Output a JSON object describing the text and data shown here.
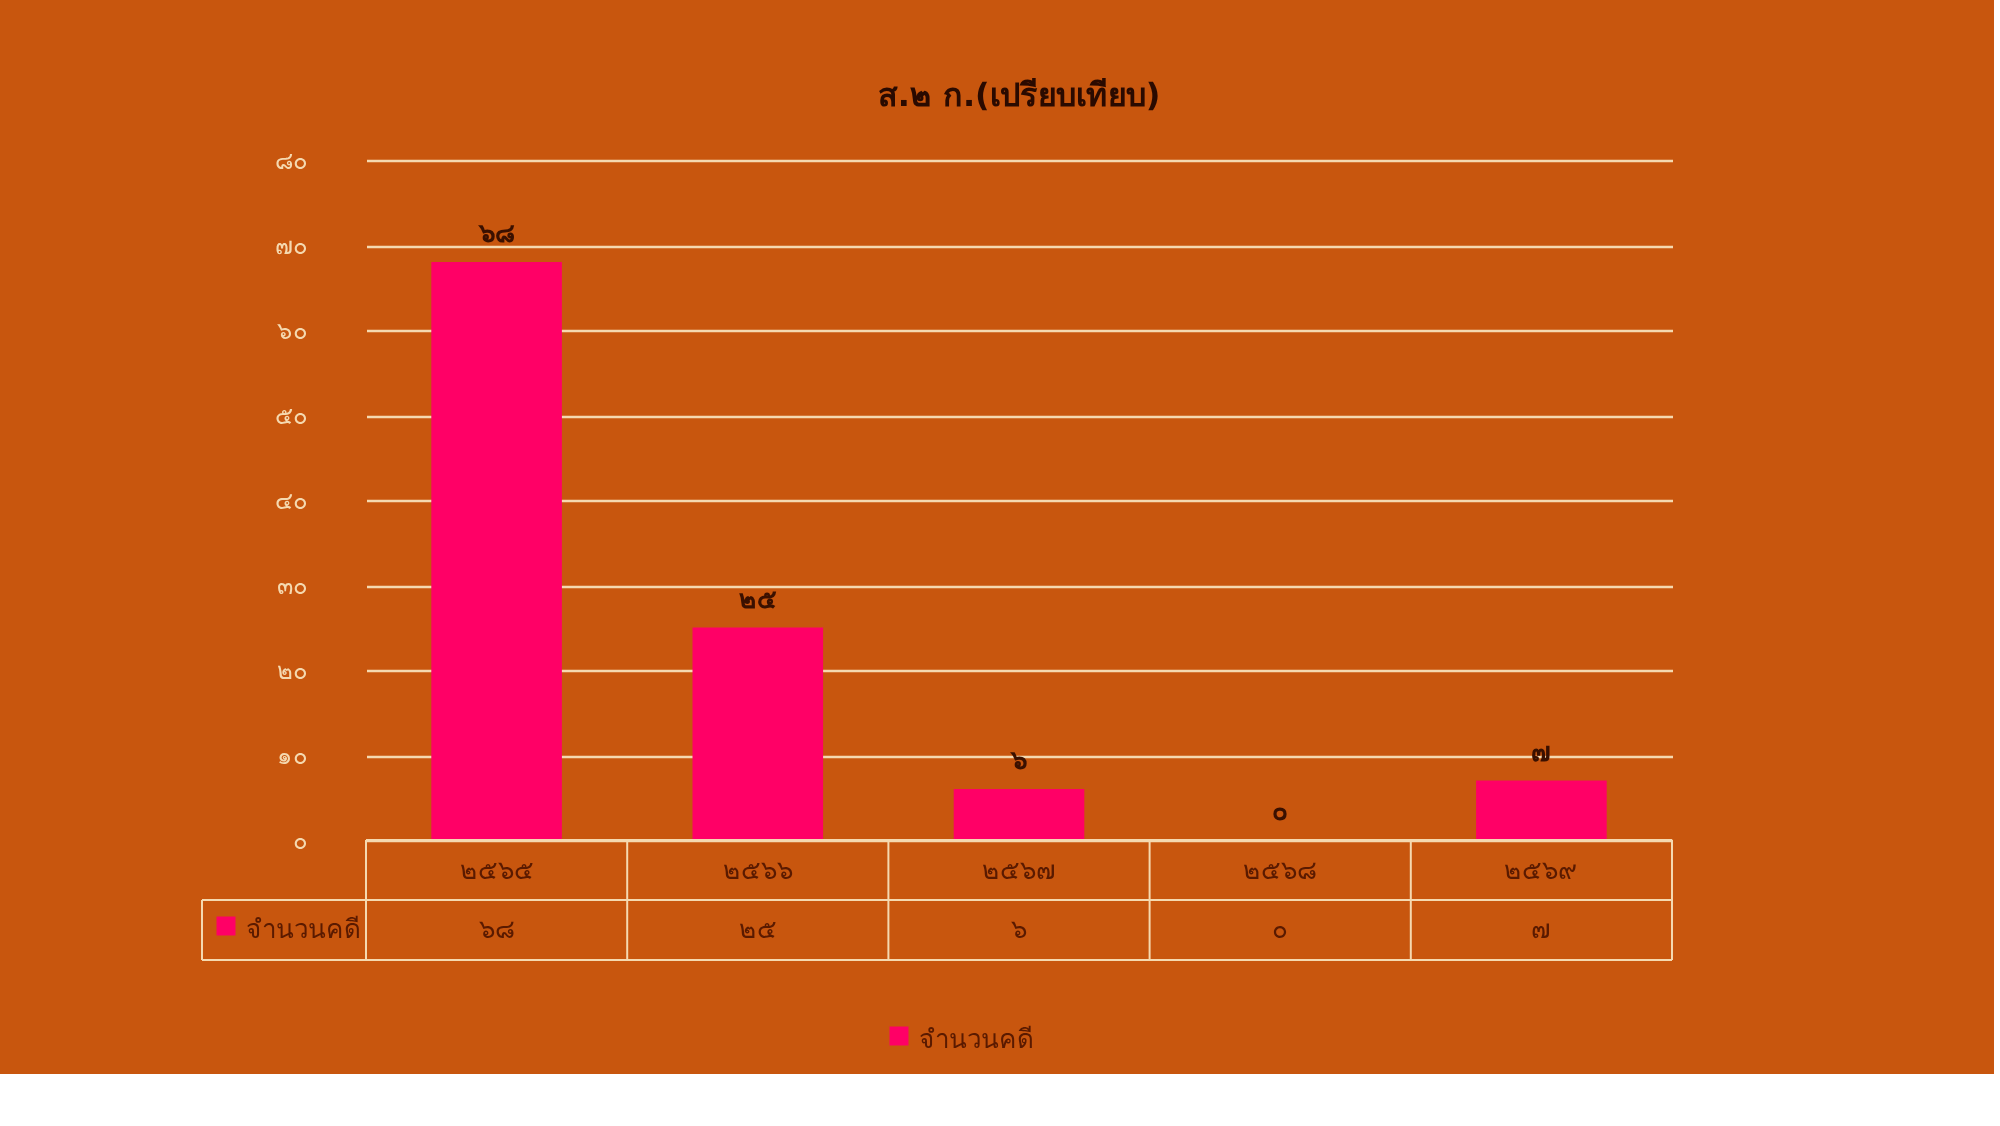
{
  "chart_data": {
    "type": "bar",
    "title": "ส.๒ ก.(เปรียบเทียบ)",
    "categories": [
      "๒๕๖๕",
      "๒๕๖๖",
      "๒๕๖๗",
      "๒๕๖๘",
      "๒๕๖๙"
    ],
    "series": [
      {
        "name": "จำนวนคดี",
        "color": "#ff0066",
        "values": [
          68,
          25,
          6,
          0,
          7
        ],
        "value_labels": [
          "๖๘",
          "๒๕",
          "๖",
          "๐",
          "๗"
        ]
      }
    ],
    "ylim": [
      0,
      80
    ],
    "yticks": [
      {
        "value": 0,
        "label": "๐"
      },
      {
        "value": 10,
        "label": "๑๐"
      },
      {
        "value": 20,
        "label": "๒๐"
      },
      {
        "value": 30,
        "label": "๓๐"
      },
      {
        "value": 40,
        "label": "๔๐"
      },
      {
        "value": 50,
        "label": "๕๐"
      },
      {
        "value": 60,
        "label": "๖๐"
      },
      {
        "value": 70,
        "label": "๗๐"
      },
      {
        "value": 80,
        "label": "๘๐"
      }
    ],
    "grid": "y",
    "legend": "bottom"
  }
}
